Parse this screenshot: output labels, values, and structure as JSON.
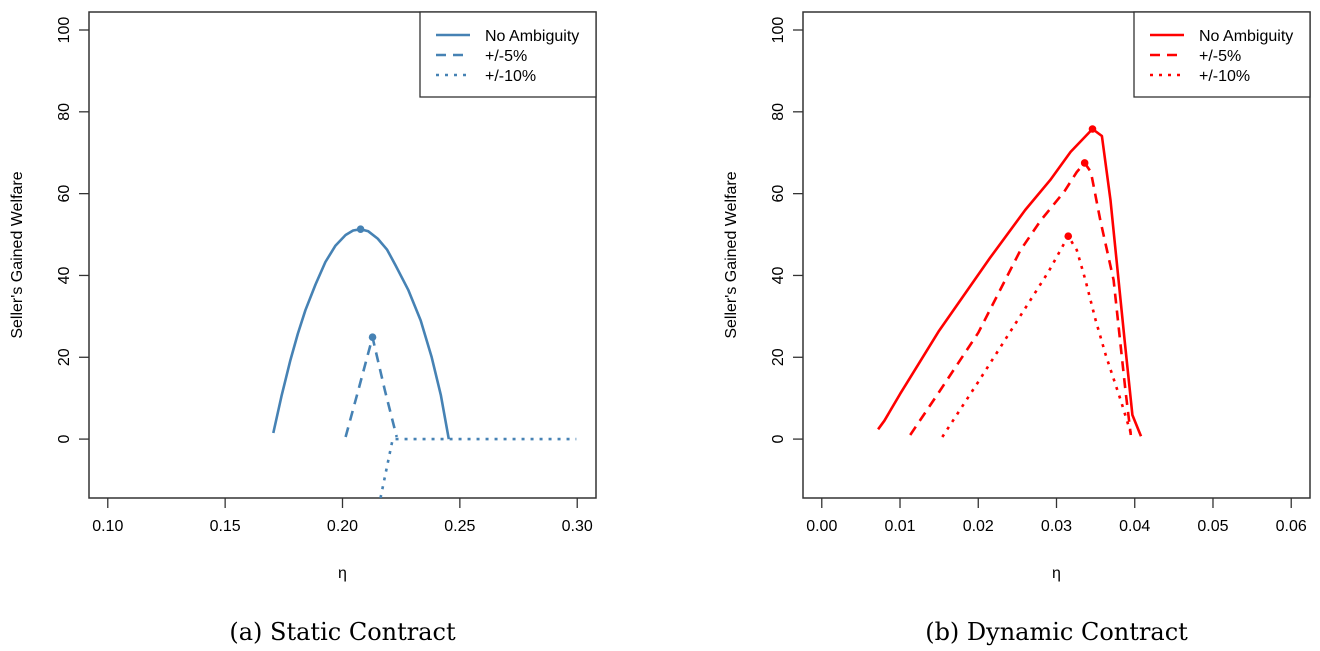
{
  "chart_data": [
    {
      "type": "line",
      "panel_id": "a",
      "caption": "(a) Static Contract",
      "xlabel": "η",
      "ylabel": "Seller's Gained Welfare",
      "xlim": [
        0.1,
        0.3
      ],
      "ylim": [
        -10,
        100
      ],
      "xticks": [
        0.1,
        0.15,
        0.2,
        0.25,
        0.3
      ],
      "xtick_labels": [
        "0.10",
        "0.15",
        "0.20",
        "0.25",
        "0.30"
      ],
      "yticks": [
        0,
        20,
        40,
        60,
        80,
        100
      ],
      "ytick_labels": [
        "0",
        "20",
        "40",
        "60",
        "80",
        "100"
      ],
      "grid": false,
      "legend_position": "top-right",
      "color": "#4682B4",
      "series": [
        {
          "name": "No Ambiguity",
          "style": "solid",
          "x": [
            0.1705,
            0.174,
            0.1778,
            0.181,
            0.1842,
            0.1885,
            0.1927,
            0.197,
            0.2013,
            0.2045,
            0.2077,
            0.211,
            0.215,
            0.219,
            0.2226,
            0.228,
            0.2333,
            0.238,
            0.2419,
            0.2453
          ],
          "y": [
            1.5,
            10.5,
            19.3,
            25.8,
            31.5,
            37.8,
            43.3,
            47.3,
            49.9,
            51.0,
            51.3,
            50.8,
            49.0,
            46.3,
            42.5,
            36.5,
            29.0,
            20.0,
            10.8,
            0.0
          ],
          "peak": {
            "x": 0.2077,
            "y": 51.3
          }
        },
        {
          "name": "+/-5%",
          "style": "dashed",
          "x": [
            0.2013,
            0.207,
            0.2128,
            0.218,
            0.2231
          ],
          "y": [
            0.5,
            12.5,
            24.9,
            12.0,
            0.5
          ],
          "peak": {
            "x": 0.2128,
            "y": 24.9
          }
        },
        {
          "name": "+/-10%",
          "style": "dotted",
          "x": [
            0.2162,
            0.2214,
            0.23,
            0.25,
            0.27,
            0.2996
          ],
          "y": [
            -14.4,
            0.0,
            0.0,
            0.0,
            0.0,
            0.0
          ],
          "peak": null
        }
      ]
    },
    {
      "type": "line",
      "panel_id": "b",
      "caption": "(b) Dynamic Contract",
      "xlabel": "η",
      "ylabel": "Seller's Gained Welfare",
      "xlim": [
        0.0,
        0.06
      ],
      "ylim": [
        -10,
        100
      ],
      "xticks": [
        0.0,
        0.01,
        0.02,
        0.03,
        0.04,
        0.05,
        0.06
      ],
      "xtick_labels": [
        "0.00",
        "0.01",
        "0.02",
        "0.03",
        "0.04",
        "0.05",
        "0.06"
      ],
      "yticks": [
        0,
        20,
        40,
        60,
        80,
        100
      ],
      "ytick_labels": [
        "0",
        "20",
        "40",
        "60",
        "80",
        "100"
      ],
      "grid": false,
      "legend_position": "top-right",
      "color": "#FF0000",
      "series": [
        {
          "name": "No Ambiguity",
          "style": "solid",
          "x": [
            0.0072,
            0.008,
            0.01,
            0.015,
            0.0215,
            0.026,
            0.0292,
            0.0318,
            0.0346,
            0.0358,
            0.0369,
            0.0387,
            0.0397,
            0.0408
          ],
          "y": [
            2.4,
            4.5,
            11.0,
            26.5,
            44.3,
            56.0,
            63.3,
            70.2,
            75.8,
            74.1,
            58.4,
            24.2,
            5.9,
            0.7
          ],
          "peak": {
            "x": 0.0346,
            "y": 75.8
          }
        },
        {
          "name": "+/-5%",
          "style": "dashed",
          "x": [
            0.0113,
            0.015,
            0.02,
            0.0254,
            0.028,
            0.031,
            0.0326,
            0.0336,
            0.0344,
            0.0356,
            0.0373,
            0.0388,
            0.0395
          ],
          "y": [
            1.0,
            11.5,
            26.0,
            46.2,
            53.5,
            60.5,
            65.3,
            67.5,
            65.3,
            53.5,
            38.9,
            12.0,
            1.0
          ],
          "peak": {
            "x": 0.0336,
            "y": 67.5
          }
        },
        {
          "name": "+/-10%",
          "style": "dotted",
          "x": [
            0.0154,
            0.02,
            0.025,
            0.029,
            0.0315,
            0.0326,
            0.0337,
            0.035,
            0.0363,
            0.0382,
            0.0397
          ],
          "y": [
            0.5,
            14.0,
            29.0,
            41.0,
            49.6,
            46.2,
            38.9,
            29.1,
            20.5,
            9.5,
            0.2
          ],
          "peak": {
            "x": 0.0315,
            "y": 49.6
          }
        }
      ]
    }
  ]
}
